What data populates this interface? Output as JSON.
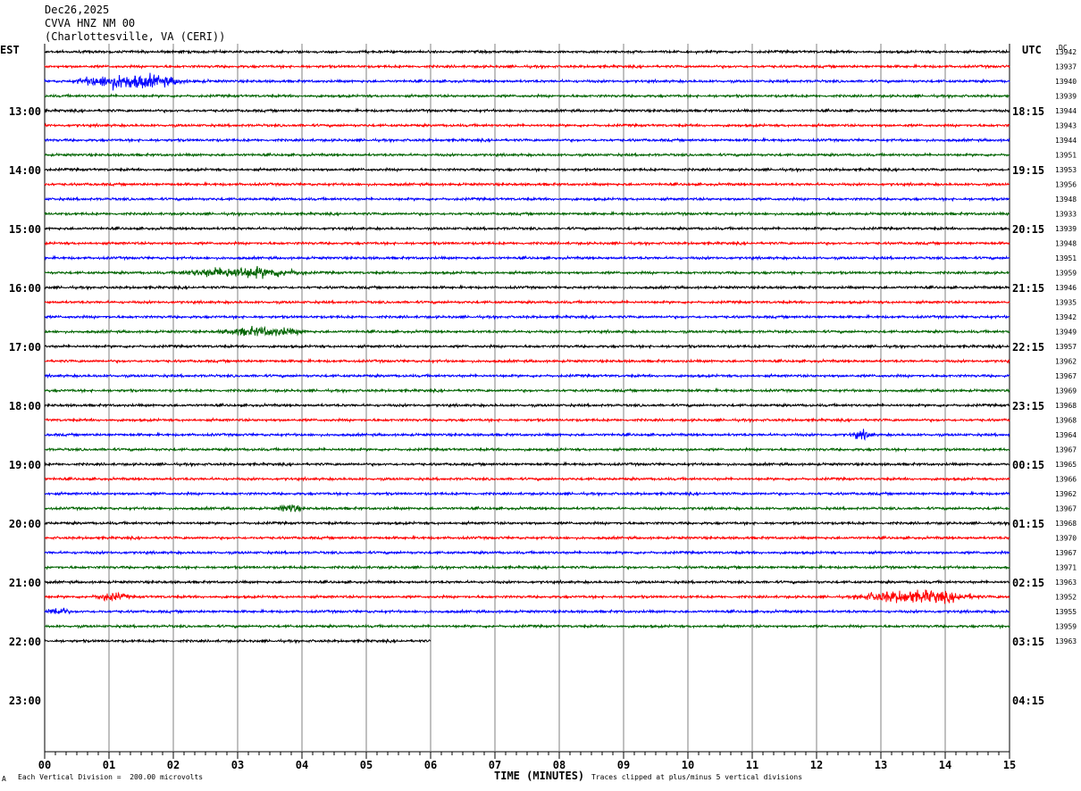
{
  "header": {
    "date": "Dec26,2025",
    "station": "CVVA HNZ NM 00",
    "location": "(Charlottesville, VA (CERI))"
  },
  "labels": {
    "left_tz": "EST",
    "right_tz": "UTC",
    "dc_label": "DC",
    "xlabel": "TIME (MINUTES)",
    "scale_note": "Each Vertical Division =  200.00 microvolts",
    "clip_note": "Traces clipped at plus/minus 5 vertical divisions",
    "corner_mark": "A"
  },
  "colors": {
    "trace_cycle": [
      "#000000",
      "#ff0000",
      "#0000ff",
      "#006400"
    ],
    "grid": "#808080"
  },
  "chart_data": {
    "type": "line",
    "title": "CVVA HNZ NM 00",
    "xlabel": "TIME (MINUTES)",
    "xlim": [
      0,
      15
    ],
    "x_ticks": [
      "00",
      "01",
      "02",
      "03",
      "04",
      "05",
      "06",
      "07",
      "08",
      "09",
      "10",
      "11",
      "12",
      "13",
      "14",
      "15"
    ],
    "traces_per_hour": 4,
    "minutes_per_trace": 15,
    "left_hour_labels": [
      "13:00",
      "14:00",
      "15:00",
      "16:00",
      "17:00",
      "18:00",
      "19:00",
      "20:00",
      "21:00",
      "22:00",
      "23:00"
    ],
    "right_hour_labels": [
      "18:15",
      "19:15",
      "20:15",
      "21:15",
      "22:15",
      "23:15",
      "00:15",
      "01:15",
      "02:15",
      "03:15",
      "04:15"
    ],
    "first_labeled_row": 4,
    "total_rows": 48,
    "dc_offsets": [
      13942,
      13937,
      13940,
      13939,
      13944,
      13943,
      13944,
      13951,
      13953,
      13956,
      13948,
      13933,
      13939,
      13948,
      13951,
      13959,
      13946,
      13935,
      13942,
      13949,
      13957,
      13962,
      13967,
      13969,
      13968,
      13968,
      13964,
      13967,
      13965,
      13966,
      13962,
      13967,
      13968,
      13970,
      13967,
      13971,
      13963,
      13952,
      13955,
      13959,
      13963
    ],
    "last_trace_end_minute": 6.0,
    "noise_amplitude_div": 0.25,
    "events": [
      {
        "row": 2,
        "start_min": 0.4,
        "end_min": 2.6,
        "amp_div": 1.6
      },
      {
        "row": 15,
        "start_min": 2.0,
        "end_min": 4.6,
        "amp_div": 1.2
      },
      {
        "row": 19,
        "start_min": 2.6,
        "end_min": 4.5,
        "amp_div": 1.0
      },
      {
        "row": 26,
        "start_min": 12.5,
        "end_min": 13.0,
        "amp_div": 1.0
      },
      {
        "row": 31,
        "start_min": 3.6,
        "end_min": 4.1,
        "amp_div": 1.0
      },
      {
        "row": 37,
        "start_min": 0.7,
        "end_min": 1.5,
        "amp_div": 0.9
      },
      {
        "row": 37,
        "start_min": 12.5,
        "end_min": 15.0,
        "amp_div": 1.4
      },
      {
        "row": 38,
        "start_min": 0.0,
        "end_min": 0.5,
        "amp_div": 1.0
      }
    ]
  }
}
